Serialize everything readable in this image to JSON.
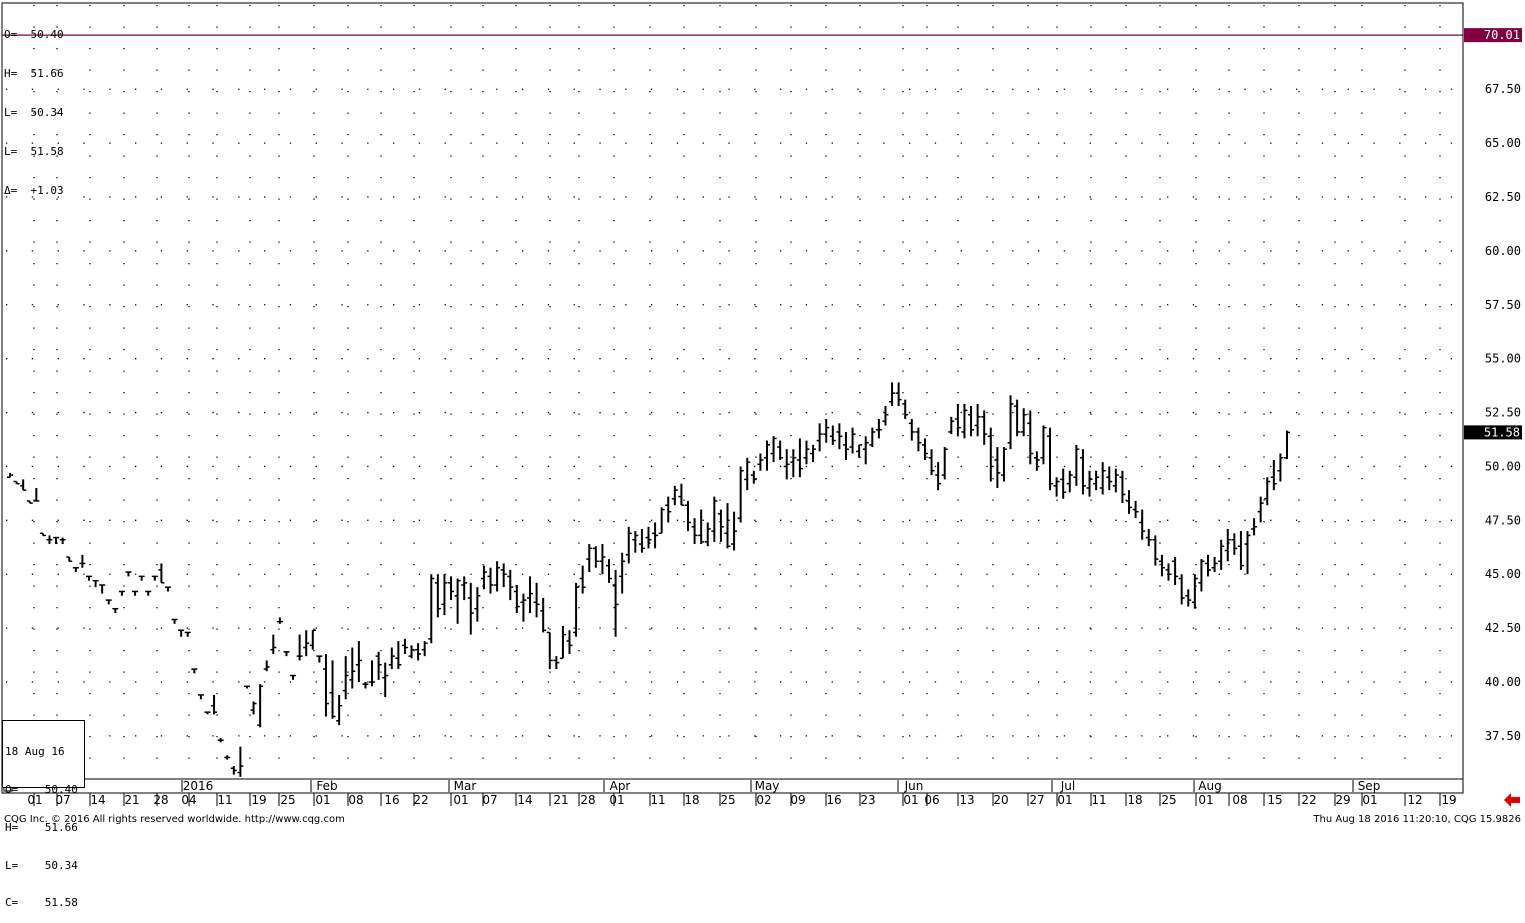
{
  "ohlc_legend": {
    "open": "O=  50.40",
    "high": "H=  51.66",
    "low1": "L=  50.34",
    "low2": "L=  51.58",
    "delta": "Δ=  +1.03"
  },
  "databox": {
    "date": "18 Aug 16",
    "open": "O=    50.40",
    "high": "H=    51.66",
    "low1": "L=    50.34",
    "low2": "C=    51.58"
  },
  "footer": {
    "copyright": "CQG Inc. © 2016 All rights reserved worldwide. http://www.cqg.com",
    "timestamp": "Thu Aug 18 2016 11:20:10, CQG 15.9826"
  },
  "colors": {
    "hline": "#800040",
    "text": "#000000",
    "grid": "#000000"
  },
  "icons": {
    "scroll_right": "red-left-arrow-icon"
  },
  "chart_data": {
    "type": "ohlc",
    "ylim": [
      35.5,
      71.5
    ],
    "y_ticks": [
      "37.50",
      "40.00",
      "42.50",
      "45.00",
      "47.50",
      "50.00",
      "52.50",
      "55.00",
      "57.50",
      "60.00",
      "62.50",
      "65.00",
      "67.50"
    ],
    "horizontal_line": {
      "value": 70.01,
      "label": "70.01"
    },
    "last_price_label": {
      "value": 51.58,
      "label": "51.58"
    },
    "x_day_labels": [
      "01",
      "07",
      "14",
      "21",
      "28",
      "04",
      "11",
      "19",
      "25",
      "01",
      "08",
      "16",
      "22",
      "01",
      "07",
      "14",
      "21",
      "28",
      "01",
      "11",
      "18",
      "25",
      "02",
      "09",
      "16",
      "23",
      "01",
      "06",
      "13",
      "20",
      "27",
      "01",
      "11",
      "18",
      "25",
      "01",
      "08",
      "15",
      "22",
      "29",
      "01",
      "12",
      "19"
    ],
    "x_month_labels": [
      "2016",
      "Feb",
      "Mar",
      "Apr",
      "May",
      "Jun",
      "Jul",
      "Aug",
      "Sep"
    ],
    "bars": [
      [
        49.5,
        49.7,
        49.5,
        49.6
      ],
      [
        49.3,
        49.3,
        49.2,
        49.2
      ],
      [
        49.1,
        49.4,
        48.9,
        48.9
      ],
      [
        48.4,
        48.4,
        48.3,
        48.3
      ],
      [
        48.4,
        49.0,
        48.4,
        48.4
      ],
      [
        46.9,
        46.9,
        46.8,
        46.8
      ],
      [
        46.6,
        46.8,
        46.4,
        46.6
      ],
      [
        46.7,
        46.7,
        46.4,
        46.7
      ],
      [
        46.6,
        46.7,
        46.4,
        46.6
      ],
      [
        45.8,
        45.8,
        45.6,
        45.6
      ],
      [
        45.3,
        45.3,
        45.1,
        45.3
      ],
      [
        45.5,
        45.9,
        45.3,
        45.5
      ],
      [
        44.9,
        44.9,
        44.7,
        44.9
      ],
      [
        44.7,
        44.7,
        44.4,
        44.7
      ],
      [
        44.5,
        44.5,
        44.1,
        44.5
      ],
      [
        43.8,
        43.8,
        43.6,
        43.8
      ],
      [
        43.4,
        43.4,
        43.2,
        43.4
      ],
      [
        44.2,
        44.2,
        44.0,
        44.2
      ],
      [
        45.1,
        45.1,
        44.9,
        45.1
      ],
      [
        44.2,
        44.2,
        44.0,
        44.2
      ],
      [
        44.9,
        44.9,
        44.7,
        44.9
      ],
      [
        44.2,
        44.2,
        44.0,
        44.2
      ],
      [
        44.9,
        44.9,
        44.7,
        44.9
      ],
      [
        45.2,
        45.5,
        44.6,
        44.6
      ],
      [
        44.4,
        44.4,
        44.2,
        44.4
      ],
      [
        42.9,
        42.9,
        42.7,
        42.9
      ],
      [
        42.4,
        42.4,
        42.1,
        42.4
      ],
      [
        42.3,
        42.3,
        42.1,
        42.3
      ],
      [
        40.6,
        40.6,
        40.4,
        40.6
      ],
      [
        39.4,
        39.4,
        39.2,
        39.4
      ],
      [
        38.6,
        38.6,
        38.5,
        38.6
      ],
      [
        38.9,
        39.4,
        38.5,
        38.6
      ],
      [
        37.3,
        37.4,
        37.2,
        37.3
      ],
      [
        36.5,
        36.6,
        36.4,
        36.5
      ],
      [
        36.0,
        36.1,
        35.7,
        35.9
      ],
      [
        35.8,
        37.0,
        35.6,
        36.1
      ],
      [
        39.8,
        39.8,
        39.7,
        39.8
      ],
      [
        38.7,
        39.1,
        38.5,
        39.0
      ],
      [
        38.0,
        39.9,
        37.9,
        39.8
      ],
      [
        40.6,
        41.0,
        40.5,
        40.7
      ],
      [
        41.5,
        42.2,
        41.3,
        41.6
      ],
      [
        42.8,
        43.0,
        42.7,
        42.8
      ],
      [
        41.4,
        41.4,
        41.2,
        41.4
      ],
      [
        40.3,
        40.3,
        40.1,
        40.3
      ],
      [
        41.2,
        42.2,
        41.0,
        41.2
      ],
      [
        41.6,
        42.4,
        41.2,
        41.8
      ],
      [
        41.7,
        42.4,
        41.5,
        42.4
      ],
      [
        41.2,
        41.2,
        40.9,
        41.2
      ],
      [
        40.6,
        41.3,
        38.4,
        39.0
      ],
      [
        39.5,
        41.0,
        38.3,
        38.4
      ],
      [
        38.2,
        39.4,
        38.0,
        38.9
      ],
      [
        39.6,
        41.2,
        39.2,
        40.3
      ],
      [
        40.1,
        41.6,
        39.7,
        40.5
      ],
      [
        40.8,
        41.9,
        40.0,
        41.0
      ],
      [
        39.9,
        40.0,
        39.7,
        39.9
      ],
      [
        40.0,
        41.0,
        39.8,
        40.0
      ],
      [
        41.2,
        41.4,
        40.1,
        40.8
      ],
      [
        40.2,
        40.9,
        39.3,
        40.3
      ],
      [
        40.8,
        41.6,
        40.6,
        41.2
      ],
      [
        41.1,
        41.9,
        40.6,
        40.8
      ],
      [
        41.7,
        42.0,
        41.3,
        41.6
      ],
      [
        41.2,
        41.7,
        41.1,
        41.5
      ],
      [
        41.5,
        41.8,
        41.0,
        41.3
      ],
      [
        41.5,
        41.9,
        41.2,
        41.8
      ],
      [
        42.0,
        45.0,
        41.8,
        44.8
      ],
      [
        44.6,
        45.0,
        43.0,
        43.4
      ],
      [
        43.6,
        45.0,
        43.1,
        44.6
      ],
      [
        44.6,
        44.9,
        43.8,
        44.2
      ],
      [
        44.0,
        44.8,
        42.7,
        44.7
      ],
      [
        44.5,
        44.9,
        43.8,
        44.6
      ],
      [
        43.9,
        44.6,
        42.2,
        43.2
      ],
      [
        43.4,
        44.4,
        42.8,
        44.0
      ],
      [
        44.8,
        45.4,
        44.3,
        45.1
      ],
      [
        44.9,
        45.3,
        44.1,
        44.5
      ],
      [
        44.5,
        45.6,
        44.2,
        45.3
      ],
      [
        45.2,
        45.5,
        44.4,
        45.0
      ],
      [
        44.9,
        45.2,
        43.8,
        44.4
      ],
      [
        44.2,
        44.5,
        43.2,
        43.5
      ],
      [
        43.7,
        44.1,
        42.8,
        43.8
      ],
      [
        43.9,
        44.9,
        43.2,
        44.1
      ],
      [
        43.7,
        44.6,
        43.0,
        43.6
      ],
      [
        43.3,
        43.9,
        42.3,
        42.4
      ],
      [
        42.3,
        42.3,
        40.6,
        41.0
      ],
      [
        41.0,
        41.2,
        40.6,
        40.9
      ],
      [
        41.1,
        42.6,
        41.1,
        42.2
      ],
      [
        41.9,
        42.4,
        41.3,
        41.7
      ],
      [
        42.3,
        44.6,
        42.1,
        44.4
      ],
      [
        44.8,
        45.4,
        44.1,
        44.4
      ],
      [
        45.7,
        46.4,
        45.1,
        46.2
      ],
      [
        46.2,
        46.3,
        45.3,
        45.6
      ],
      [
        45.6,
        46.4,
        45.0,
        45.8
      ],
      [
        45.4,
        45.7,
        44.6,
        44.8
      ],
      [
        44.5,
        45.2,
        42.1,
        43.6
      ],
      [
        44.9,
        46.0,
        44.1,
        45.6
      ],
      [
        45.9,
        47.2,
        45.5,
        46.9
      ],
      [
        46.6,
        47.0,
        46.0,
        46.8
      ],
      [
        46.4,
        47.1,
        46.0,
        46.2
      ],
      [
        46.7,
        47.2,
        46.2,
        46.6
      ],
      [
        46.9,
        47.4,
        46.2,
        46.8
      ],
      [
        46.9,
        48.1,
        46.9,
        48.0
      ],
      [
        48.2,
        48.6,
        47.4,
        47.9
      ],
      [
        48.5,
        49.1,
        48.2,
        48.9
      ],
      [
        48.6,
        49.2,
        48.2,
        48.2
      ],
      [
        48.2,
        48.4,
        47.0,
        47.4
      ],
      [
        47.2,
        47.6,
        46.4,
        46.8
      ],
      [
        46.8,
        48.0,
        46.4,
        46.5
      ],
      [
        46.5,
        47.4,
        46.3,
        47.1
      ],
      [
        47.0,
        48.6,
        46.5,
        48.4
      ],
      [
        47.8,
        48.0,
        46.5,
        47.2
      ],
      [
        46.9,
        48.3,
        46.2,
        46.3
      ],
      [
        46.4,
        47.9,
        46.1,
        47.0
      ],
      [
        47.6,
        50.0,
        47.4,
        49.8
      ],
      [
        49.4,
        50.4,
        48.9,
        50.2
      ],
      [
        49.6,
        49.8,
        49.2,
        49.4
      ],
      [
        50.1,
        50.6,
        49.8,
        50.3
      ],
      [
        50.4,
        51.2,
        49.8,
        51.0
      ],
      [
        50.6,
        51.4,
        50.2,
        51.3
      ],
      [
        50.9,
        51.2,
        50.3,
        50.4
      ],
      [
        50.0,
        50.8,
        49.4,
        50.1
      ],
      [
        50.2,
        50.8,
        49.5,
        50.4
      ],
      [
        50.3,
        51.3,
        49.5,
        49.9
      ],
      [
        50.4,
        51.2,
        50.1,
        50.8
      ],
      [
        50.6,
        51.0,
        50.2,
        50.8
      ],
      [
        51.2,
        52.0,
        50.7,
        51.5
      ],
      [
        51.5,
        52.2,
        51.1,
        51.8
      ],
      [
        51.4,
        51.9,
        51.0,
        51.2
      ],
      [
        51.6,
        52.0,
        50.8,
        51.4
      ],
      [
        51.0,
        51.6,
        50.3,
        50.8
      ],
      [
        50.9,
        51.8,
        50.6,
        51.5
      ],
      [
        50.7,
        51.0,
        50.4,
        51.0
      ],
      [
        50.8,
        51.4,
        50.1,
        51.1
      ],
      [
        51.0,
        51.8,
        50.9,
        51.6
      ],
      [
        51.7,
        52.2,
        51.3,
        51.7
      ],
      [
        52.1,
        52.8,
        51.9,
        52.4
      ],
      [
        53.0,
        53.9,
        52.8,
        53.4
      ],
      [
        53.4,
        53.9,
        52.8,
        53.1
      ],
      [
        52.9,
        53.1,
        52.2,
        52.4
      ],
      [
        52.0,
        52.2,
        51.2,
        51.6
      ],
      [
        51.6,
        51.8,
        50.7,
        51.1
      ],
      [
        51.0,
        51.3,
        50.3,
        50.6
      ],
      [
        50.4,
        50.8,
        49.6,
        49.8
      ],
      [
        49.6,
        50.2,
        48.9,
        49.2
      ],
      [
        49.6,
        50.9,
        49.4,
        50.8
      ],
      [
        51.6,
        52.3,
        51.5,
        52.1
      ],
      [
        52.2,
        52.9,
        51.4,
        51.8
      ],
      [
        51.6,
        52.9,
        51.3,
        52.6
      ],
      [
        52.4,
        52.8,
        51.4,
        51.7
      ],
      [
        51.9,
        52.9,
        51.4,
        52.3
      ],
      [
        52.3,
        52.6,
        51.0,
        51.5
      ],
      [
        51.4,
        51.8,
        49.3,
        50.0
      ],
      [
        50.3,
        50.9,
        49.0,
        49.7
      ],
      [
        49.6,
        50.9,
        49.3,
        50.8
      ],
      [
        51.1,
        53.3,
        50.8,
        52.9
      ],
      [
        52.8,
        53.1,
        51.4,
        51.6
      ],
      [
        51.6,
        52.7,
        51.4,
        52.4
      ],
      [
        52.0,
        52.6,
        50.1,
        50.6
      ],
      [
        50.4,
        50.7,
        49.8,
        50.3
      ],
      [
        50.4,
        51.9,
        50.1,
        51.8
      ],
      [
        51.4,
        51.8,
        48.9,
        49.2
      ],
      [
        49.1,
        49.5,
        48.6,
        49.3
      ],
      [
        49.4,
        49.9,
        48.5,
        48.8
      ],
      [
        49.2,
        49.8,
        48.8,
        49.6
      ],
      [
        49.5,
        51.0,
        49.1,
        50.8
      ],
      [
        50.4,
        50.8,
        48.7,
        49.1
      ],
      [
        49.0,
        49.8,
        48.6,
        49.4
      ],
      [
        49.2,
        49.8,
        48.9,
        49.5
      ],
      [
        49.0,
        50.2,
        48.7,
        49.8
      ],
      [
        49.5,
        50.0,
        48.9,
        49.3
      ],
      [
        49.1,
        49.9,
        48.8,
        49.6
      ],
      [
        49.5,
        49.8,
        48.3,
        48.7
      ],
      [
        48.4,
        48.9,
        47.8,
        48.1
      ],
      [
        48.0,
        48.4,
        47.6,
        47.9
      ],
      [
        47.4,
        48.0,
        46.6,
        47.0
      ],
      [
        46.7,
        47.1,
        46.3,
        46.6
      ],
      [
        46.6,
        46.8,
        45.4,
        45.7
      ],
      [
        45.6,
        45.9,
        44.9,
        45.3
      ],
      [
        45.2,
        45.5,
        44.7,
        45.0
      ],
      [
        45.6,
        45.8,
        44.5,
        44.9
      ],
      [
        44.8,
        45.0,
        43.6,
        43.9
      ],
      [
        44.0,
        44.3,
        43.5,
        43.8
      ],
      [
        43.7,
        45.0,
        43.4,
        44.8
      ],
      [
        44.6,
        45.7,
        44.2,
        45.6
      ],
      [
        45.5,
        45.9,
        44.9,
        45.2
      ],
      [
        45.3,
        45.8,
        45.1,
        45.5
      ],
      [
        45.6,
        46.6,
        45.2,
        46.3
      ],
      [
        46.1,
        47.1,
        45.6,
        46.6
      ],
      [
        46.6,
        46.9,
        45.9,
        46.2
      ],
      [
        46.3,
        47.0,
        45.2,
        45.4
      ],
      [
        46.4,
        47.0,
        45.0,
        46.8
      ],
      [
        47.1,
        47.6,
        46.8,
        47.2
      ],
      [
        47.9,
        48.6,
        47.4,
        48.3
      ],
      [
        48.5,
        49.5,
        48.2,
        49.3
      ],
      [
        49.5,
        50.3,
        48.9,
        49.2
      ],
      [
        49.8,
        50.6,
        49.3,
        50.4
      ],
      [
        50.4,
        51.66,
        50.34,
        51.58
      ]
    ]
  }
}
